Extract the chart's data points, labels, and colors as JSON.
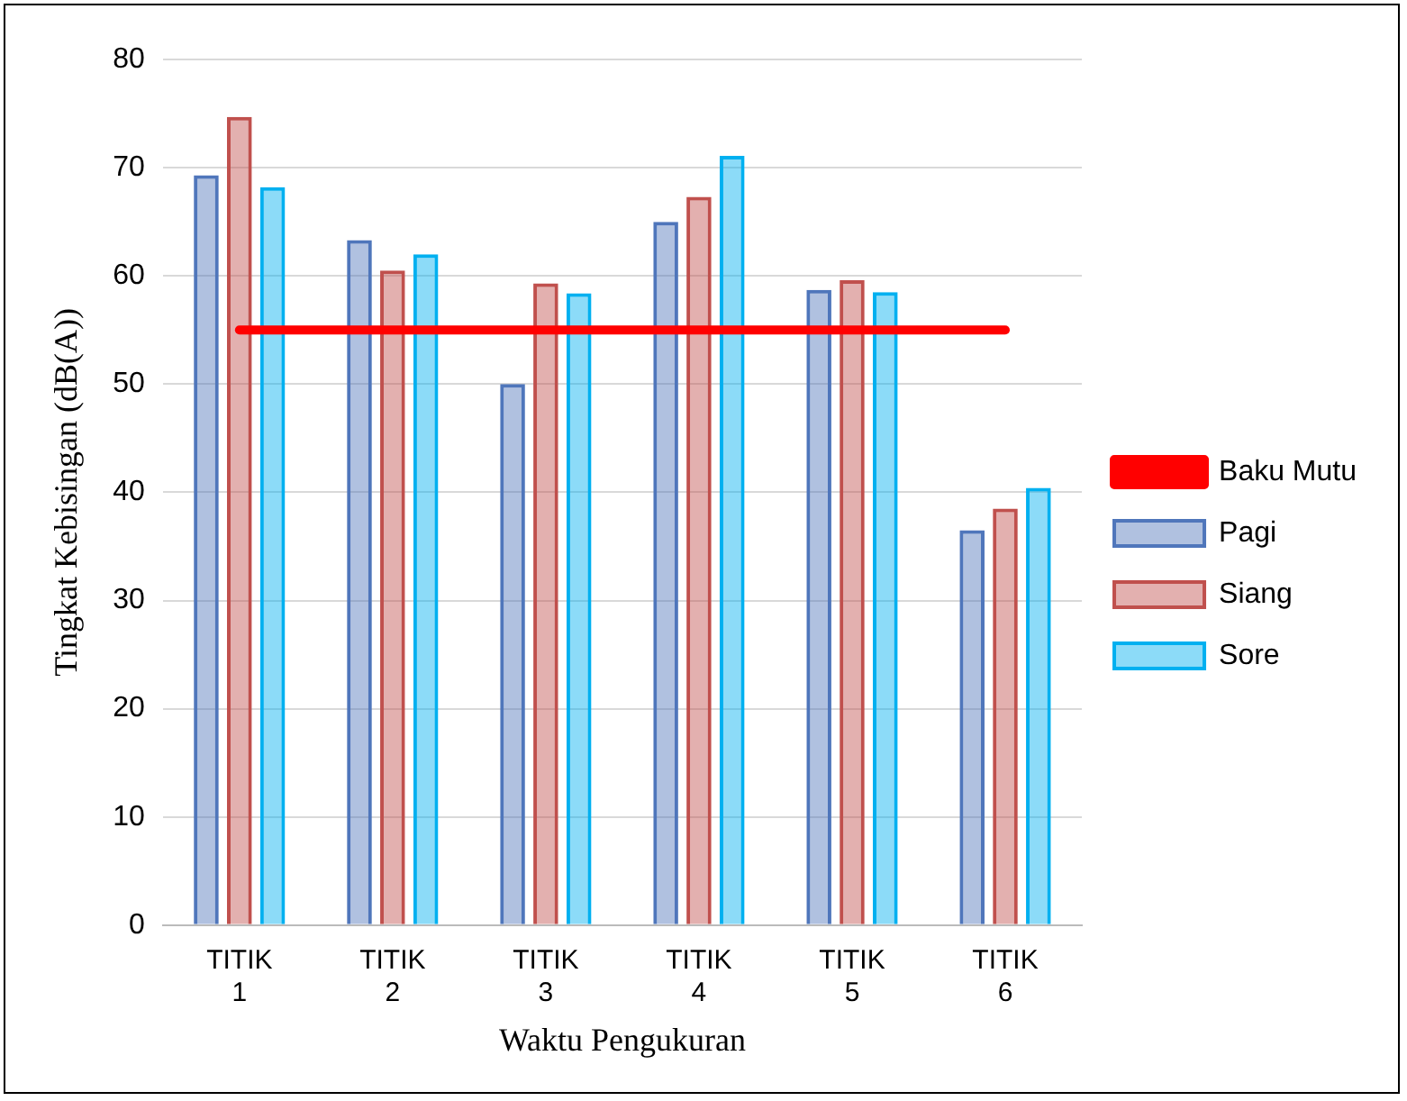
{
  "chart_data": {
    "type": "bar",
    "xlabel": "Waktu Pengukuran",
    "ylabel": "Tingkat Kebisingan (dB(A))",
    "categories": [
      "TITIK 1",
      "TITIK 2",
      "TITIK 3",
      "TITIK 4",
      "TITIK 5",
      "TITIK 6"
    ],
    "series": [
      {
        "name": "Pagi",
        "color": "#4f76bb",
        "values": [
          69.3,
          63.3,
          50,
          65,
          58.7,
          36.5
        ]
      },
      {
        "name": "Siang",
        "color": "#c0504d",
        "values": [
          74.7,
          60.5,
          59.3,
          67.3,
          59.6,
          38.5
        ]
      },
      {
        "name": "Sore",
        "color": "#00b0f0",
        "values": [
          68.2,
          62,
          58.4,
          71.1,
          58.5,
          40.4
        ]
      },
      {
        "name": "Baku Mutu",
        "type": "line",
        "color": "#ff0000",
        "values": [
          55,
          55,
          55,
          55,
          55,
          55
        ]
      }
    ],
    "ylim": [
      0,
      80
    ],
    "yticks": [
      0,
      10,
      20,
      30,
      40,
      50,
      60,
      70,
      80
    ],
    "grid": "y",
    "legend": "right",
    "marker": "none"
  }
}
